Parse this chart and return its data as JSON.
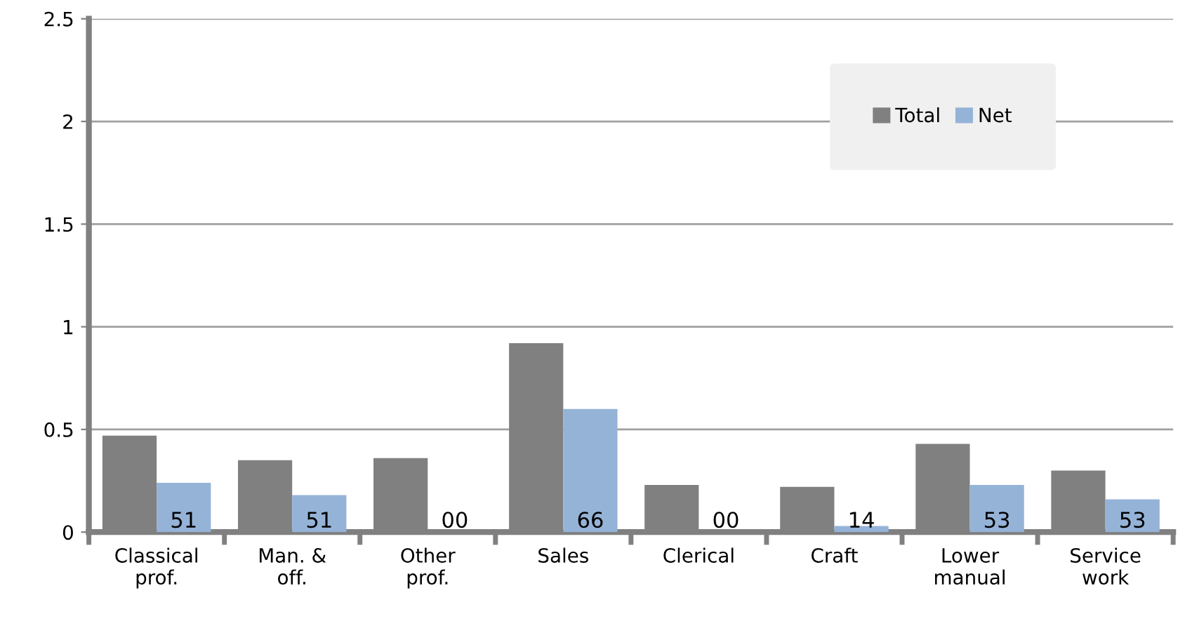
{
  "chart_data": {
    "type": "bar",
    "categories": [
      "Classical\nprof.",
      "Man. &\noff.",
      "Other\nprof.",
      "Sales",
      "Clerical",
      "Craft",
      "Lower\nmanual",
      "Service\nwork"
    ],
    "series": [
      {
        "name": "Total",
        "color": "#808080",
        "values": [
          0.47,
          0.35,
          0.36,
          0.92,
          0.23,
          0.22,
          0.43,
          0.3
        ]
      },
      {
        "name": "Net",
        "color": "#95b3d7",
        "values": [
          0.24,
          0.18,
          0,
          0.6,
          0,
          0.03,
          0.23,
          0.16
        ]
      }
    ],
    "ylim": [
      0,
      2.5
    ],
    "yticks": [
      0,
      0.5,
      1,
      1.5,
      2,
      2.5
    ],
    "grid": "y",
    "legend": "top right",
    "annotations": [
      {
        "text": "51",
        "x": "Classical\nprof.",
        "y": 0
      },
      {
        "text": "51",
        "x": "Man. &\noff.",
        "y": 0
      },
      {
        "text": "00",
        "x": "Other\nprof.",
        "y": 0
      },
      {
        "text": "66",
        "x": "Sales",
        "y": 0
      },
      {
        "text": "00",
        "x": "Clerical",
        "y": 0
      },
      {
        "text": "14",
        "x": "Craft",
        "y": 0
      },
      {
        "text": "53",
        "x": "Lower\nmanual",
        "y": 0
      },
      {
        "text": "53",
        "x": "Service\nwork",
        "y": 0
      }
    ]
  }
}
